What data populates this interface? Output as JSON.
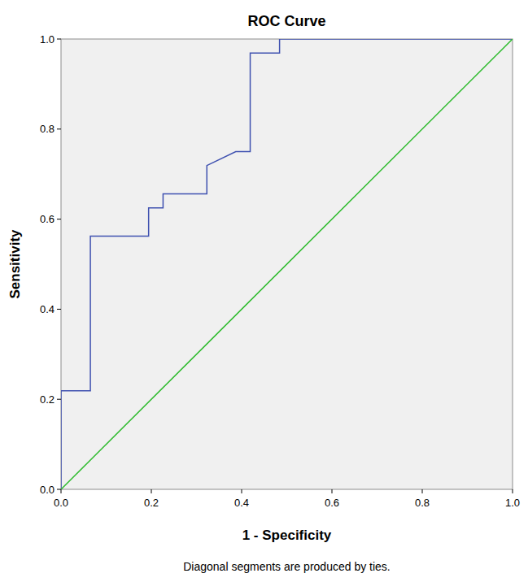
{
  "chart_data": {
    "type": "line",
    "title": "ROC Curve",
    "x_label": "1 - Specificity",
    "y_label": "Sensitivity",
    "note": "Diagonal segments are produced by ties.",
    "xlim": [
      0,
      1
    ],
    "ylim": [
      0,
      1
    ],
    "xticks": [
      {
        "value": 0,
        "label": "0.0"
      },
      {
        "value": 0.2,
        "label": "0.2"
      },
      {
        "value": 0.4,
        "label": "0.4"
      },
      {
        "value": 0.6,
        "label": "0.6"
      },
      {
        "value": 0.8,
        "label": "0.8"
      },
      {
        "value": 1,
        "label": "1.0"
      }
    ],
    "yticks": [
      {
        "value": 0,
        "label": "0.0"
      },
      {
        "value": 0.2,
        "label": "0.2"
      },
      {
        "value": 0.4,
        "label": "0.4"
      },
      {
        "value": 0.6,
        "label": "0.6"
      },
      {
        "value": 0.8,
        "label": "0.8"
      },
      {
        "value": 1,
        "label": "1.0"
      }
    ],
    "grid": false,
    "series": [
      {
        "color": "#3f51b0",
        "x": [
          0,
          0,
          0.065,
          0.065,
          0.194,
          0.194,
          0.226,
          0.226,
          0.323,
          0.323,
          0.387,
          0.419,
          0.419,
          0.484,
          0.484,
          1
        ],
        "values": [
          0,
          0.219,
          0.219,
          0.5625,
          0.5625,
          0.625,
          0.625,
          0.656,
          0.656,
          0.719,
          0.75,
          0.75,
          0.969,
          0.969,
          1,
          1
        ]
      },
      {
        "color": "#2dbb2d",
        "x": [
          0,
          1
        ],
        "values": [
          0,
          1
        ]
      }
    ]
  }
}
